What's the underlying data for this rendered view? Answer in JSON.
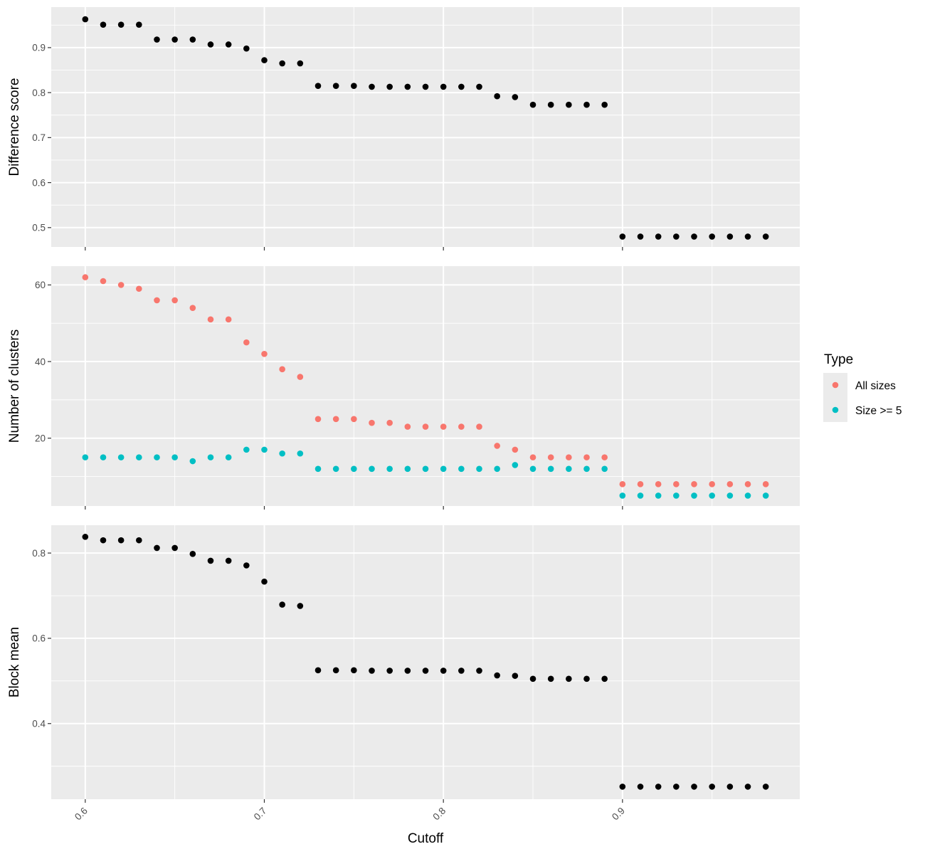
{
  "chart_data": {
    "type": "scatter",
    "xlabel": "Cutoff",
    "x": [
      0.6,
      0.61,
      0.62,
      0.63,
      0.64,
      0.65,
      0.66,
      0.67,
      0.68,
      0.69,
      0.7,
      0.71,
      0.72,
      0.73,
      0.74,
      0.75,
      0.76,
      0.77,
      0.78,
      0.79,
      0.8,
      0.81,
      0.82,
      0.83,
      0.84,
      0.85,
      0.86,
      0.87,
      0.88,
      0.89,
      0.9,
      0.91,
      0.92,
      0.93,
      0.94,
      0.95,
      0.96,
      0.97,
      0.98
    ],
    "xlim": [
      0.581,
      0.999
    ],
    "xticks": [
      0.6,
      0.7,
      0.8,
      0.9
    ],
    "xtick_labels": [
      "0.6",
      "0.7",
      "0.8",
      "0.9"
    ],
    "grid": true,
    "colors": {
      "panel_bg": "#ebebeb",
      "grid": "#ffffff",
      "all_sizes": "#f8766d",
      "size_ge_5": "#00bfc4",
      "points": "#000000"
    },
    "legend": {
      "title": "Type",
      "position": "right",
      "entries": [
        {
          "label": "All sizes",
          "color": "#f8766d"
        },
        {
          "label": "Size >= 5",
          "color": "#00bfc4"
        }
      ]
    },
    "panels": [
      {
        "ylabel": "Difference score",
        "ylim": [
          0.457,
          0.99
        ],
        "yticks": [
          0.5,
          0.6,
          0.7,
          0.8,
          0.9
        ],
        "ytick_labels": [
          "0.5",
          "0.6",
          "0.7",
          "0.8",
          "0.9"
        ],
        "series": [
          {
            "color": "#000000",
            "values": [
              0.963,
              0.951,
              0.951,
              0.951,
              0.918,
              0.918,
              0.918,
              0.907,
              0.907,
              0.898,
              0.872,
              0.865,
              0.865,
              0.815,
              0.815,
              0.815,
              0.813,
              0.813,
              0.813,
              0.813,
              0.813,
              0.813,
              0.813,
              0.792,
              0.79,
              0.773,
              0.773,
              0.773,
              0.773,
              0.773,
              0.48,
              0.48,
              0.48,
              0.48,
              0.48,
              0.48,
              0.48,
              0.48,
              0.48
            ]
          }
        ]
      },
      {
        "ylabel": "Number of clusters",
        "ylim": [
          2.3,
          64.9
        ],
        "yticks": [
          20,
          40,
          60
        ],
        "ytick_labels": [
          "20",
          "40",
          "60"
        ],
        "series": [
          {
            "name": "All sizes",
            "color": "#f8766d",
            "values": [
              62,
              61,
              60,
              59,
              56,
              56,
              54,
              51,
              51,
              45,
              42,
              38,
              36,
              25,
              25,
              25,
              24,
              24,
              23,
              23,
              23,
              23,
              23,
              18,
              17,
              15,
              15,
              15,
              15,
              15,
              8,
              8,
              8,
              8,
              8,
              8,
              8,
              8,
              8
            ]
          },
          {
            "name": "Size >= 5",
            "color": "#00bfc4",
            "values": [
              15,
              15,
              15,
              15,
              15,
              15,
              14,
              15,
              15,
              17,
              17,
              16,
              16,
              12,
              12,
              12,
              12,
              12,
              12,
              12,
              12,
              12,
              12,
              12,
              13,
              12,
              12,
              12,
              12,
              12,
              5,
              5,
              5,
              5,
              5,
              5,
              5,
              5,
              5
            ]
          }
        ]
      },
      {
        "ylabel": "Block mean",
        "ylim": [
          0.2226,
          0.8653
        ],
        "yticks": [
          0.4,
          0.6,
          0.8
        ],
        "ytick_labels": [
          "0.4",
          "0.6",
          "0.8"
        ],
        "series": [
          {
            "color": "#000000",
            "values": [
              0.838,
              0.83,
              0.83,
              0.83,
              0.812,
              0.812,
              0.798,
              0.782,
              0.782,
              0.771,
              0.733,
              0.679,
              0.676,
              0.525,
              0.525,
              0.525,
              0.524,
              0.524,
              0.524,
              0.524,
              0.524,
              0.524,
              0.524,
              0.513,
              0.512,
              0.505,
              0.505,
              0.505,
              0.505,
              0.505,
              0.252,
              0.252,
              0.252,
              0.252,
              0.252,
              0.252,
              0.252,
              0.252,
              0.252
            ]
          }
        ]
      }
    ]
  }
}
